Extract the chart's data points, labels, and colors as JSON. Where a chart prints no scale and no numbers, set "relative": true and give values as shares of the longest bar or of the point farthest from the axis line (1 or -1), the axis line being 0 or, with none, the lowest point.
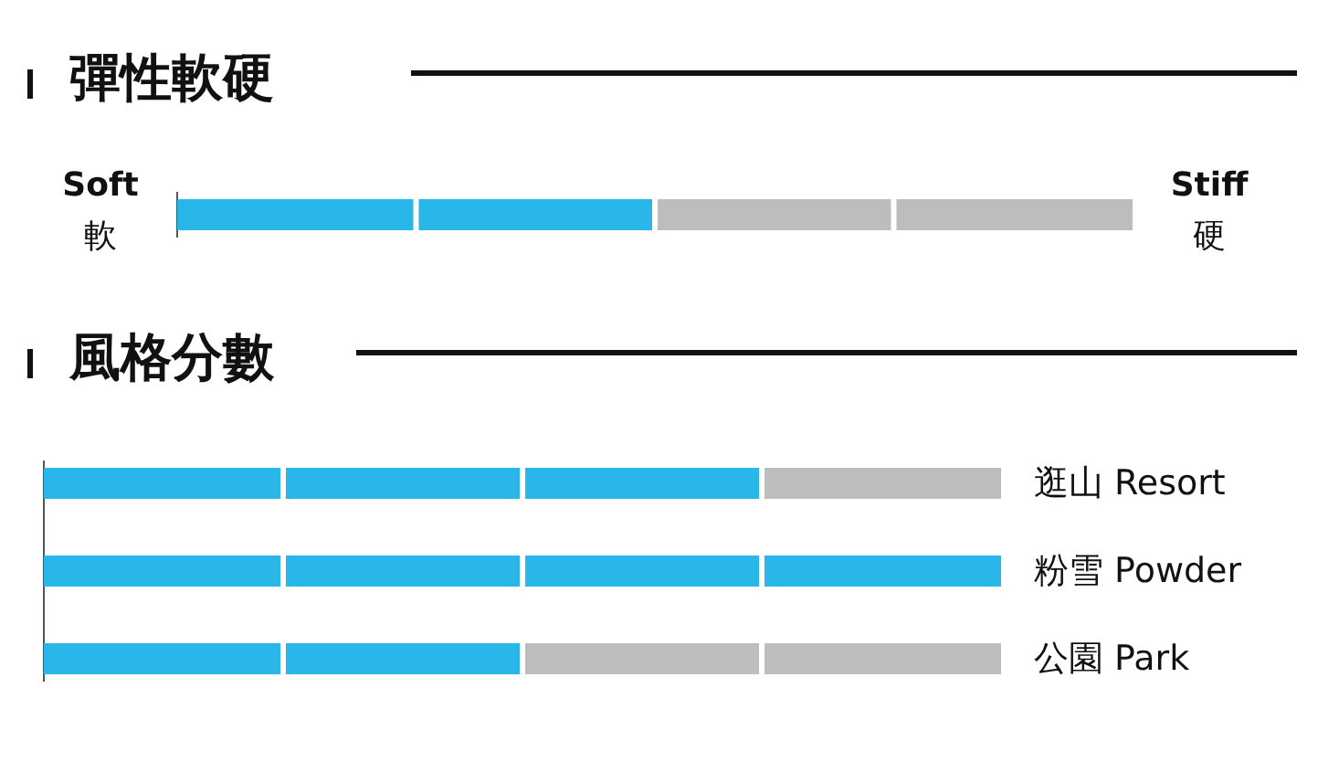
{
  "chart_data": [
    {
      "type": "bar",
      "title": "彈性軟硬",
      "orientation": "horizontal",
      "stacked": true,
      "relative": true,
      "categories": [
        null
      ],
      "series": [
        {
          "color": "#29b6e8",
          "values": [
            0.5
          ]
        },
        {
          "color": "#bdbdbd",
          "values": [
            0.5
          ]
        }
      ],
      "annotations": [
        "Soft",
        "軟",
        "Stiff",
        "硬"
      ]
    },
    {
      "type": "bar",
      "title": "風格分數",
      "orientation": "horizontal",
      "stacked": true,
      "relative": true,
      "categories": [
        "逛山 Resort",
        "粉雪 Powder",
        "公園 Park"
      ],
      "series": [
        {
          "color": "#29b6e8",
          "values": [
            0.75,
            1,
            0.5
          ]
        },
        {
          "color": "#bdbdbd",
          "values": [
            0.25,
            0,
            0.5
          ]
        }
      ]
    }
  ]
}
